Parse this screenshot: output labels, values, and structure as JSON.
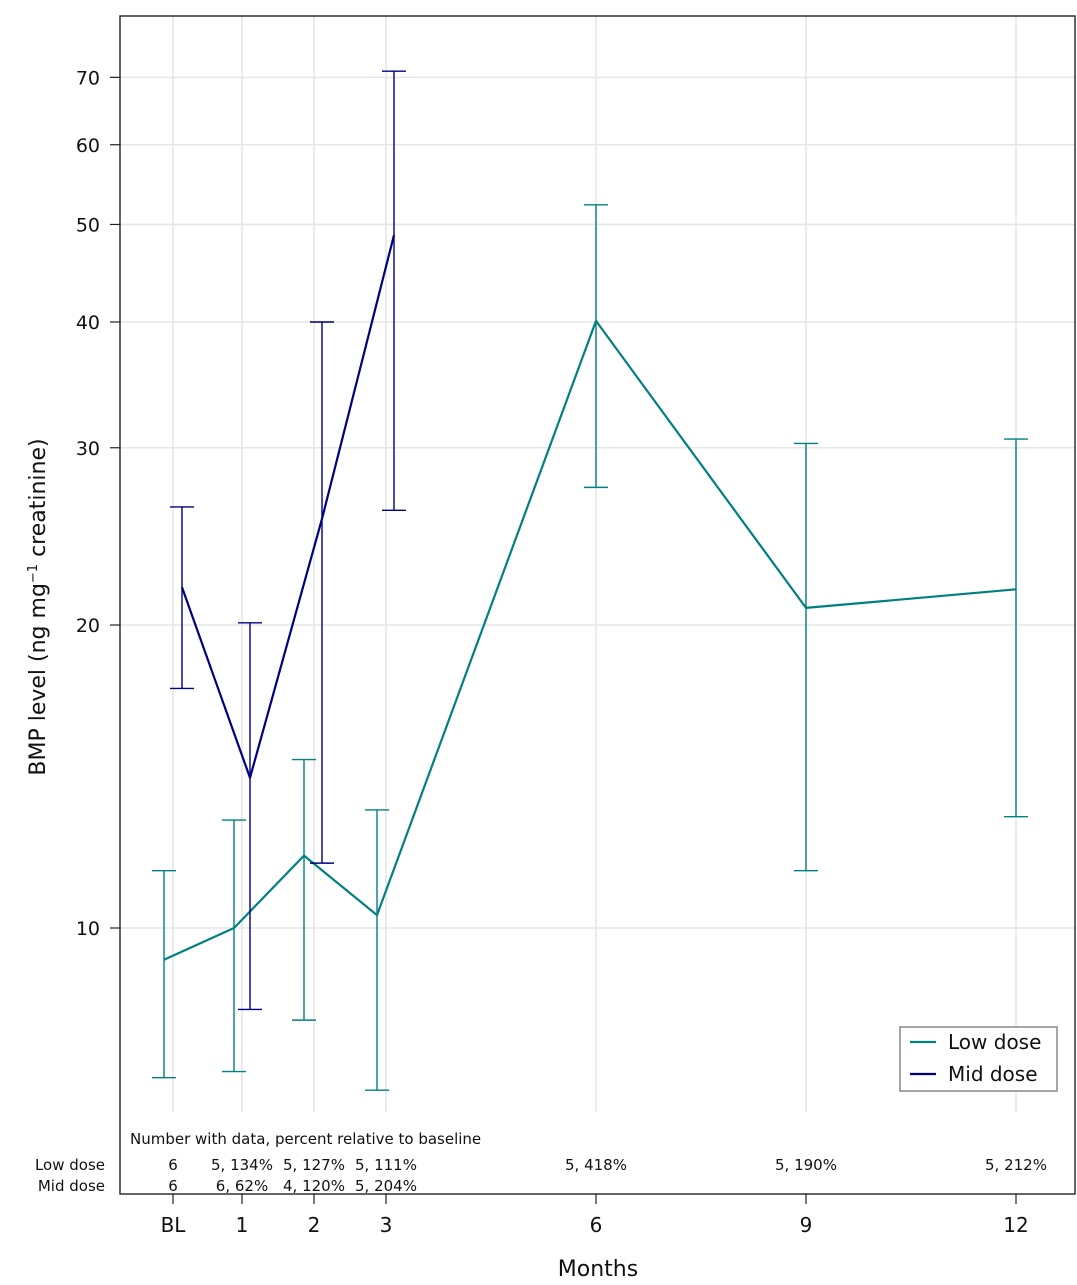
{
  "colors": {
    "low": "#008080",
    "mid": "#000080",
    "grid": "#e6e6e6"
  },
  "chart_data": {
    "type": "line",
    "xlabel": "Months",
    "ylabel_main": "BMP level (ng mg",
    "ylabel_sup": "−1",
    "ylabel_end": " creatinine)",
    "y_scale": "log",
    "y_ticks": [
      10,
      20,
      30,
      40,
      50,
      60,
      70
    ],
    "x_ticks": [
      {
        "label": "BL",
        "x": 0
      },
      {
        "label": "1",
        "x": 1
      },
      {
        "label": "2",
        "x": 2
      },
      {
        "label": "3",
        "x": 3
      },
      {
        "label": "6",
        "x": 6
      },
      {
        "label": "9",
        "x": 9
      },
      {
        "label": "12",
        "x": 12
      }
    ],
    "grid": true,
    "legend_position": "bottom-right",
    "series": [
      {
        "name": "Low dose",
        "color": "#008080",
        "points": [
          {
            "x": 0,
            "y": 9.3,
            "lo": 7.1,
            "hi": 11.4
          },
          {
            "x": 1,
            "y": 10.0,
            "lo": 7.2,
            "hi": 12.8
          },
          {
            "x": 2,
            "y": 11.8,
            "lo": 8.1,
            "hi": 14.7
          },
          {
            "x": 3,
            "y": 10.3,
            "lo": 6.9,
            "hi": 13.1
          },
          {
            "x": 6,
            "y": 40.1,
            "lo": 27.4,
            "hi": 52.3
          },
          {
            "x": 9,
            "y": 20.8,
            "lo": 11.4,
            "hi": 30.3
          },
          {
            "x": 12,
            "y": 21.7,
            "lo": 12.9,
            "hi": 30.6
          }
        ]
      },
      {
        "name": "Mid dose",
        "color": "#000080",
        "points": [
          {
            "x": 0,
            "y": 21.8,
            "lo": 17.3,
            "hi": 26.2
          },
          {
            "x": 1,
            "y": 14.1,
            "lo": 8.3,
            "hi": 20.1
          },
          {
            "x": 2,
            "y": 25.5,
            "lo": 11.6,
            "hi": 40.0
          },
          {
            "x": 3,
            "y": 48.8,
            "lo": 26.0,
            "hi": 71.0
          }
        ]
      }
    ],
    "table": {
      "header": "Number with data, percent relative to baseline",
      "rows": [
        {
          "label": "Low dose",
          "cells": [
            {
              "x": 0,
              "text": "6"
            },
            {
              "x": 1,
              "text": "5, 134%"
            },
            {
              "x": 2,
              "text": "5, 127%"
            },
            {
              "x": 3,
              "text": "5, 111%"
            },
            {
              "x": 6,
              "text": "5, 418%"
            },
            {
              "x": 9,
              "text": "5, 190%"
            },
            {
              "x": 12,
              "text": "5, 212%"
            }
          ]
        },
        {
          "label": "Mid dose",
          "cells": [
            {
              "x": 0,
              "text": "6"
            },
            {
              "x": 1,
              "text": "6, 62%"
            },
            {
              "x": 2,
              "text": "4, 120%"
            },
            {
              "x": 3,
              "text": "5, 204%"
            }
          ]
        }
      ]
    }
  }
}
